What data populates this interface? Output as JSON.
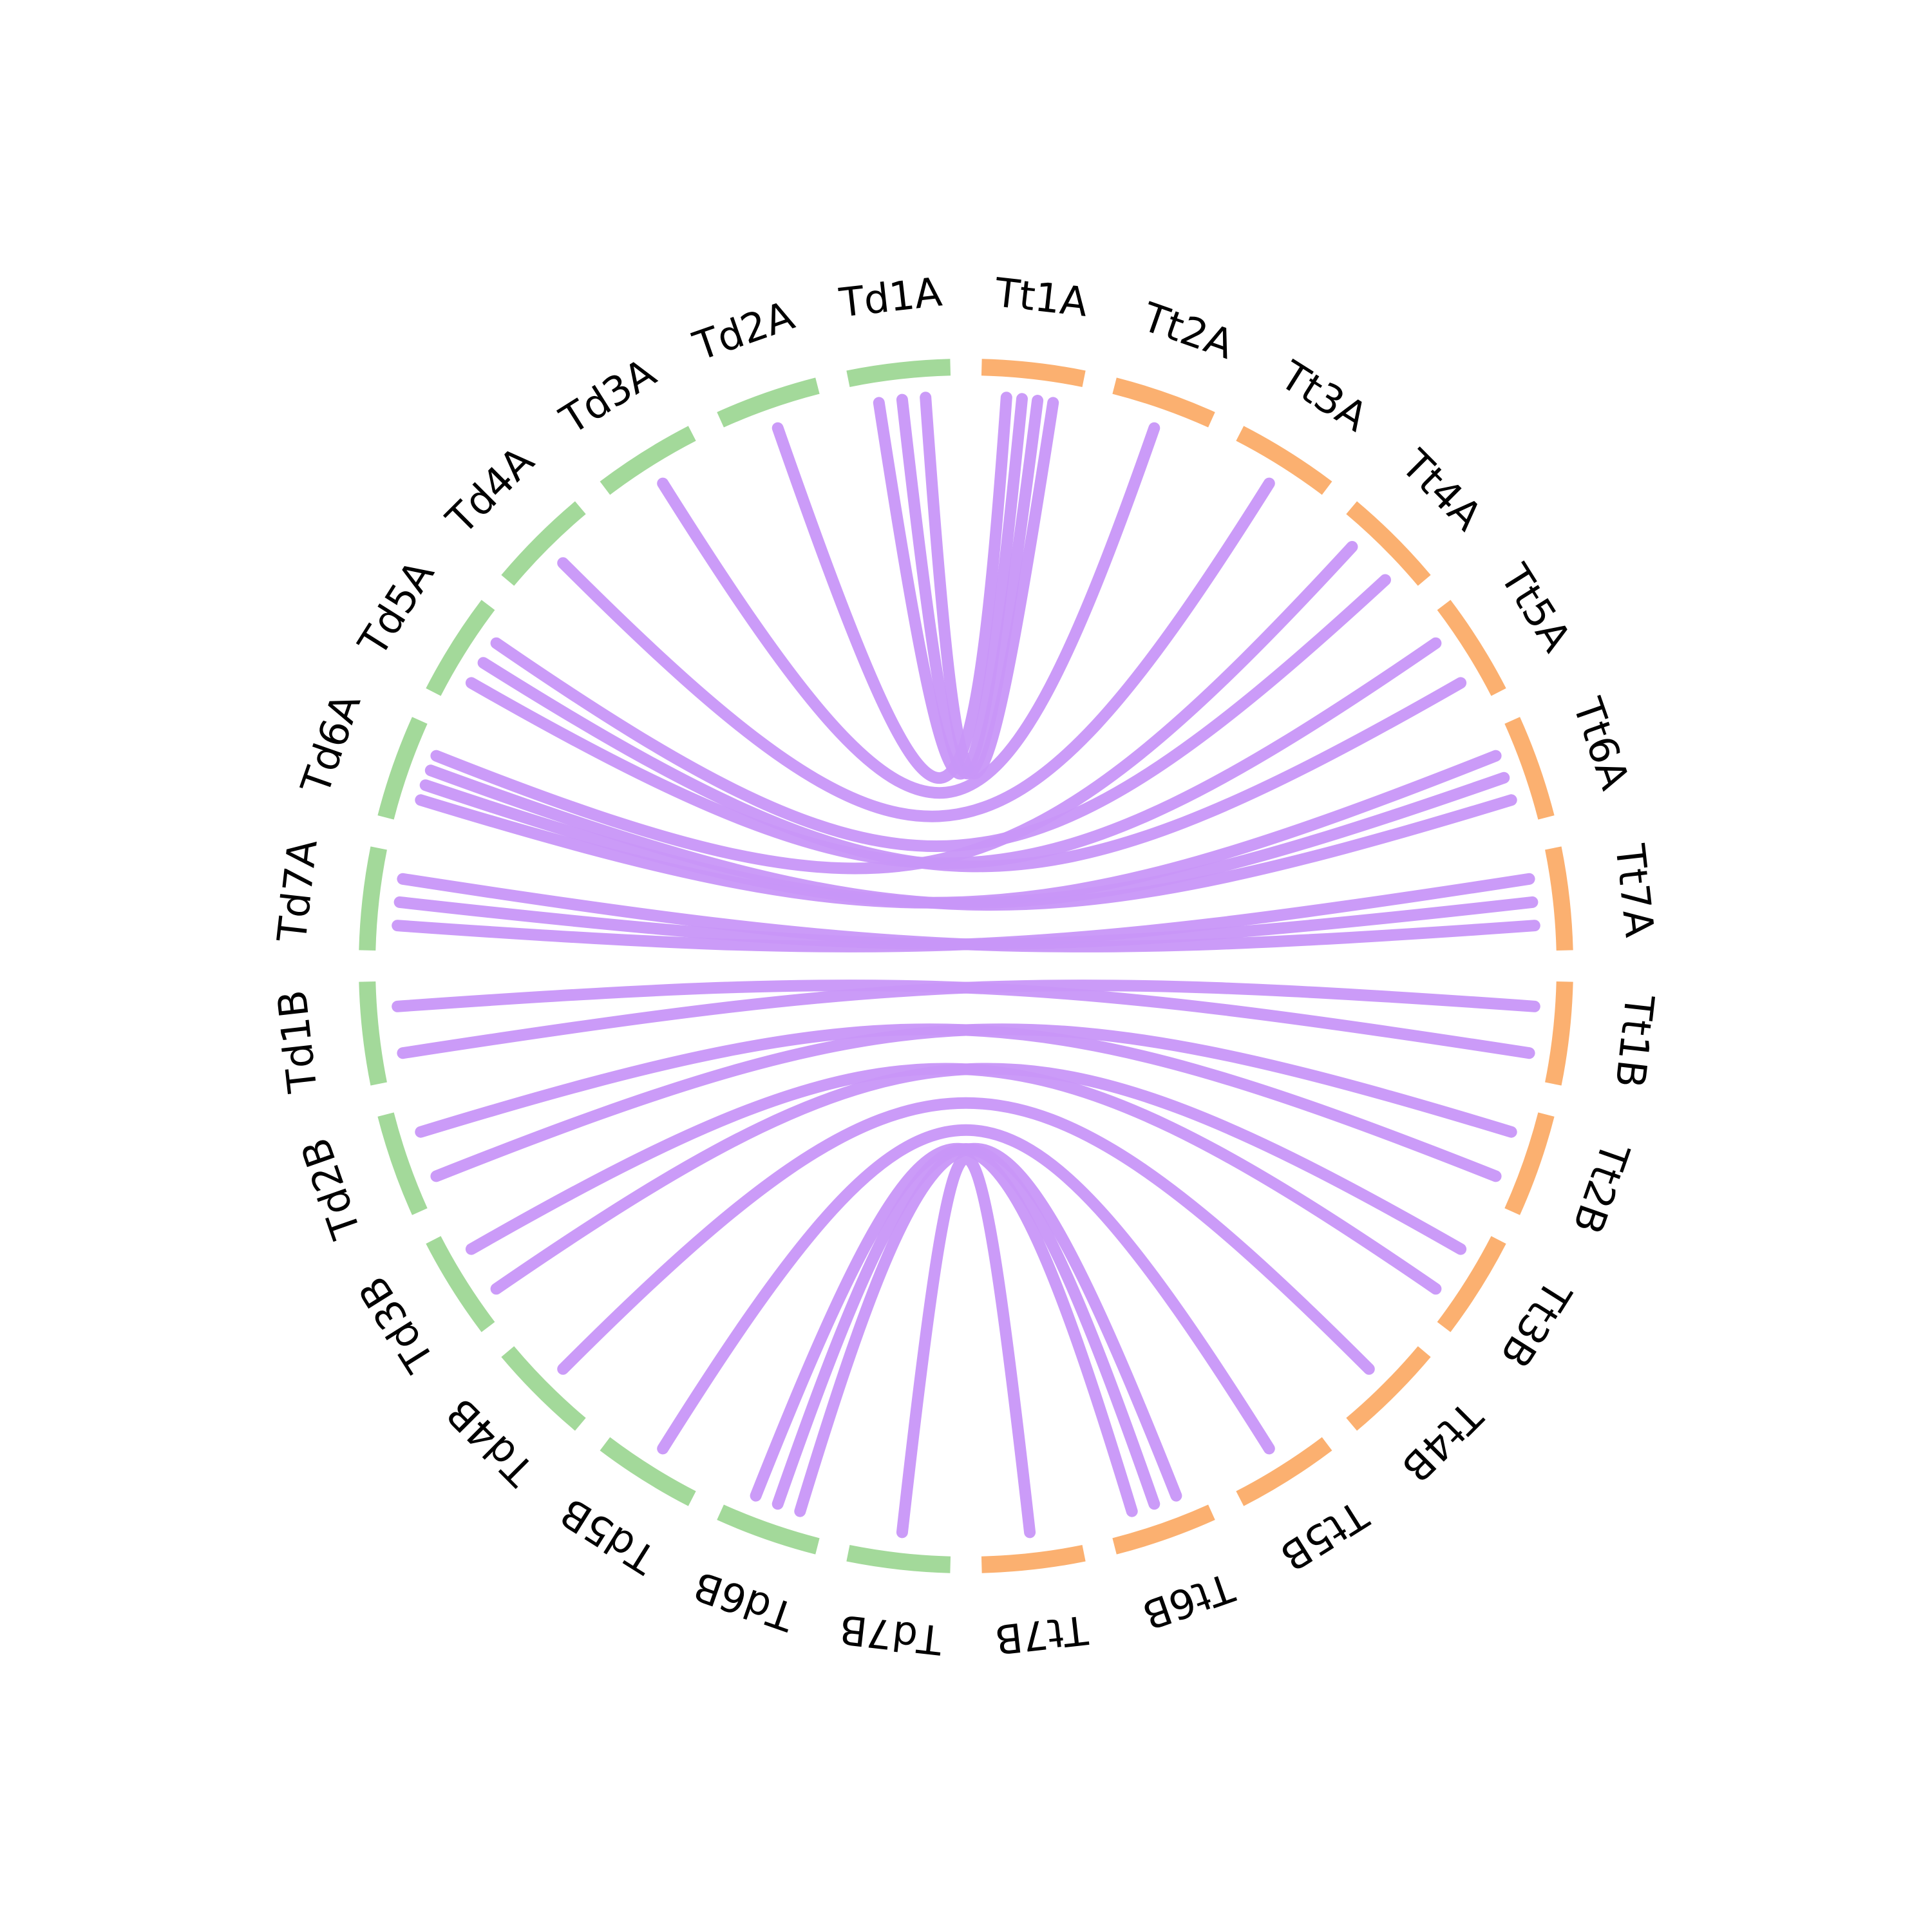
{
  "colors": {
    "group_td": "#a3d99a",
    "group_tt": "#fbb070",
    "link": "#c896f8",
    "label": "#000000"
  },
  "segments": [
    {
      "name": "Td1A",
      "group": "td"
    },
    {
      "name": "Td2A",
      "group": "td"
    },
    {
      "name": "Td3A",
      "group": "td"
    },
    {
      "name": "Td4A",
      "group": "td"
    },
    {
      "name": "Td5A",
      "group": "td"
    },
    {
      "name": "Td6A",
      "group": "td"
    },
    {
      "name": "Td7A",
      "group": "td"
    },
    {
      "name": "Td1B",
      "group": "td"
    },
    {
      "name": "Td2B",
      "group": "td"
    },
    {
      "name": "Td3B",
      "group": "td"
    },
    {
      "name": "Td4B",
      "group": "td"
    },
    {
      "name": "Td5B",
      "group": "td"
    },
    {
      "name": "Td6B",
      "group": "td"
    },
    {
      "name": "Td7B",
      "group": "td"
    },
    {
      "name": "Tt7B",
      "group": "tt"
    },
    {
      "name": "Tt6B",
      "group": "tt"
    },
    {
      "name": "Tt5B",
      "group": "tt"
    },
    {
      "name": "Tt4B",
      "group": "tt"
    },
    {
      "name": "Tt3B",
      "group": "tt"
    },
    {
      "name": "Tt2B",
      "group": "tt"
    },
    {
      "name": "Tt1B",
      "group": "tt"
    },
    {
      "name": "Tt7A",
      "group": "tt"
    },
    {
      "name": "Tt6A",
      "group": "tt"
    },
    {
      "name": "Tt5A",
      "group": "tt"
    },
    {
      "name": "Tt4A",
      "group": "tt"
    },
    {
      "name": "Tt3A",
      "group": "tt"
    },
    {
      "name": "Tt2A",
      "group": "tt"
    },
    {
      "name": "Tt1A",
      "group": "tt"
    }
  ],
  "links": [
    {
      "from": "Td1A",
      "to": "Tt1A"
    },
    {
      "from": "Td1A",
      "to": "Tt1A"
    },
    {
      "from": "Td1A",
      "to": "Tt1A"
    },
    {
      "from": "Td2A",
      "to": "Tt1A"
    },
    {
      "from": "Td3A",
      "to": "Tt2A"
    },
    {
      "from": "Td4A",
      "to": "Tt3A"
    },
    {
      "from": "Td5A",
      "to": "Tt4A"
    },
    {
      "from": "Td5A",
      "to": "Tt5A"
    },
    {
      "from": "Td5A",
      "to": "Tt5A"
    },
    {
      "from": "Td6A",
      "to": "Tt4A"
    },
    {
      "from": "Td6A",
      "to": "Tt6A"
    },
    {
      "from": "Td6A",
      "to": "Tt6A"
    },
    {
      "from": "Td6A",
      "to": "Tt6A"
    },
    {
      "from": "Td7A",
      "to": "Tt7A"
    },
    {
      "from": "Td7A",
      "to": "Tt7A"
    },
    {
      "from": "Td7A",
      "to": "Tt7A"
    },
    {
      "from": "Td1B",
      "to": "Tt1B"
    },
    {
      "from": "Td1B",
      "to": "Tt1B"
    },
    {
      "from": "Td2B",
      "to": "Tt2B"
    },
    {
      "from": "Td2B",
      "to": "Tt2B"
    },
    {
      "from": "Td3B",
      "to": "Tt3B"
    },
    {
      "from": "Td3B",
      "to": "Tt3B"
    },
    {
      "from": "Td4B",
      "to": "Tt4B"
    },
    {
      "from": "Td5B",
      "to": "Tt5B"
    },
    {
      "from": "Td6B",
      "to": "Tt6B"
    },
    {
      "from": "Td6B",
      "to": "Tt6B"
    },
    {
      "from": "Td6B",
      "to": "Tt6B"
    },
    {
      "from": "Td7B",
      "to": "Tt7B"
    }
  ]
}
